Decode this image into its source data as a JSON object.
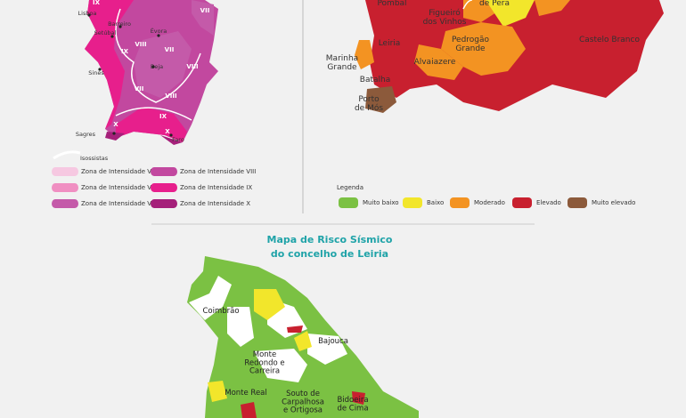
{
  "left_map": {
    "labels": [
      "IX",
      "Lisboa",
      "Barreiro",
      "Setúbal",
      "Évora",
      "VII",
      "IX",
      "VIII",
      "VII",
      "VIII",
      "Sines",
      "Beja",
      "VII",
      "VIII",
      "IX",
      "X",
      "Sagres",
      "X",
      "Faro"
    ],
    "isoline_label": "Isossistas",
    "legend": [
      {
        "label": "Zona de Intensidade V",
        "color": "#f6c8e1"
      },
      {
        "label": "Zona de Intensidade VI",
        "color": "#f08fc2"
      },
      {
        "label": "Zona de Intensidade VII",
        "color": "#c45aa9"
      },
      {
        "label": "Zona de Intensidade VIII",
        "color": "#c2489f"
      },
      {
        "label": "Zona de Intensidade IX",
        "color": "#e71f8c"
      },
      {
        "label": "Zona de Intensidade X",
        "color": "#a5207a"
      }
    ]
  },
  "right_map": {
    "labels": [
      "Pombal",
      "Figueiró dos Vinhos",
      "de Pera",
      "Leiria",
      "Pedrogão Grande",
      "Castelo Branco",
      "Marinha Grande",
      "Alvaiazere",
      "Batalha",
      "Porto de Mós"
    ],
    "legend_title": "Legenda",
    "legend": [
      {
        "label": "Muito baixo",
        "color": "#7bc143"
      },
      {
        "label": "Baixo",
        "color": "#f2e62b"
      },
      {
        "label": "Moderado",
        "color": "#f39322"
      },
      {
        "label": "Elevado",
        "color": "#c8202f"
      },
      {
        "label": "Muito elevado",
        "color": "#8c5a3b"
      }
    ]
  },
  "bottom_map": {
    "title_line1": "Mapa de Risco Sísmico",
    "title_line2": "do concelho de Leiria",
    "labels": [
      "Coimbrão",
      "Bajouca",
      "Monte Redondo e Carreira",
      "Monte Real",
      "Souto de Carpalhosa e Ortigosa",
      "Bidoeira de Cima"
    ]
  }
}
